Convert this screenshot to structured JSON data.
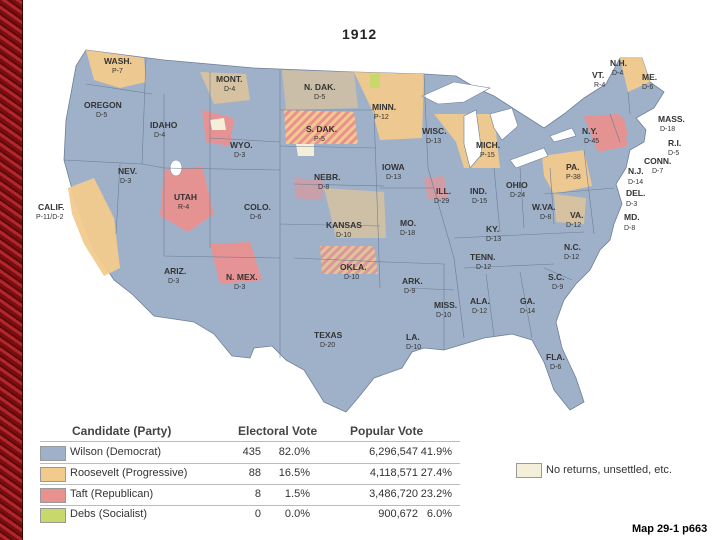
{
  "title": "1912",
  "caption": "Map 29-1 p663",
  "colors": {
    "wilson": "#9fb1c9",
    "roosevelt": "#f2ca8d",
    "taft": "#e99191",
    "debs": "#c8d86b",
    "no_returns": "#f3efd9",
    "water": "#ffffff"
  },
  "states": [
    {
      "abbr": "WASH.",
      "votes": "P-7"
    },
    {
      "abbr": "OREGON",
      "votes": "D-5"
    },
    {
      "abbr": "CALIF.",
      "votes": "P-11/D-2"
    },
    {
      "abbr": "IDAHO",
      "votes": "D-4"
    },
    {
      "abbr": "NEV.",
      "votes": "D-3"
    },
    {
      "abbr": "MONT.",
      "votes": "D-4"
    },
    {
      "abbr": "WYO.",
      "votes": "D-3"
    },
    {
      "abbr": "UTAH",
      "votes": "R-4"
    },
    {
      "abbr": "ARIZ.",
      "votes": "D-3"
    },
    {
      "abbr": "COLO.",
      "votes": "D-6"
    },
    {
      "abbr": "N. MEX.",
      "votes": "D-3"
    },
    {
      "abbr": "N. DAK.",
      "votes": "D-5"
    },
    {
      "abbr": "S. DAK.",
      "votes": "P-5"
    },
    {
      "abbr": "NEBR.",
      "votes": "D-8"
    },
    {
      "abbr": "KANSAS",
      "votes": "D-10"
    },
    {
      "abbr": "OKLA.",
      "votes": "D-10"
    },
    {
      "abbr": "TEXAS",
      "votes": "D-20"
    },
    {
      "abbr": "MINN.",
      "votes": "P-12"
    },
    {
      "abbr": "IOWA",
      "votes": "D-13"
    },
    {
      "abbr": "MO.",
      "votes": "D-18"
    },
    {
      "abbr": "ARK.",
      "votes": "D-9"
    },
    {
      "abbr": "LA.",
      "votes": "D-10"
    },
    {
      "abbr": "WISC.",
      "votes": "D-13"
    },
    {
      "abbr": "ILL.",
      "votes": "D-29"
    },
    {
      "abbr": "MICH.",
      "votes": "P-15"
    },
    {
      "abbr": "IND.",
      "votes": "D-15"
    },
    {
      "abbr": "OHIO",
      "votes": "D-24"
    },
    {
      "abbr": "KY.",
      "votes": "D-13"
    },
    {
      "abbr": "TENN.",
      "votes": "D-12"
    },
    {
      "abbr": "MISS.",
      "votes": "D-10"
    },
    {
      "abbr": "ALA.",
      "votes": "D-12"
    },
    {
      "abbr": "GA.",
      "votes": "D-14"
    },
    {
      "abbr": "FLA.",
      "votes": "D-6"
    },
    {
      "abbr": "S.C.",
      "votes": "D-9"
    },
    {
      "abbr": "N.C.",
      "votes": "D-12"
    },
    {
      "abbr": "VA.",
      "votes": "D-12"
    },
    {
      "abbr": "W.VA.",
      "votes": "D-8"
    },
    {
      "abbr": "PA.",
      "votes": "P-38"
    },
    {
      "abbr": "N.Y.",
      "votes": "D-45"
    },
    {
      "abbr": "VT.",
      "votes": "R-4"
    },
    {
      "abbr": "N.H.",
      "votes": "D-4"
    },
    {
      "abbr": "ME.",
      "votes": "D-6"
    },
    {
      "abbr": "MASS.",
      "votes": "D-18"
    },
    {
      "abbr": "R.I.",
      "votes": "D-5"
    },
    {
      "abbr": "CONN.",
      "votes": "D-7"
    },
    {
      "abbr": "N.J.",
      "votes": "D-14"
    },
    {
      "abbr": "DEL.",
      "votes": "D-3"
    },
    {
      "abbr": "MD.",
      "votes": "D-8"
    }
  ],
  "legend": {
    "headers": {
      "candidate": "Candidate (Party)",
      "electoral": "Electoral Vote",
      "popular": "Popular Vote"
    },
    "rows": [
      {
        "name": "Wilson (Democrat)",
        "ev": "435",
        "ev_pct": "82.0%",
        "pv": "6,296,547",
        "pv_pct": "41.9%"
      },
      {
        "name": "Roosevelt (Progressive)",
        "ev": "88",
        "ev_pct": "16.5%",
        "pv": "4,118,571",
        "pv_pct": "27.4%"
      },
      {
        "name": "Taft (Republican)",
        "ev": "8",
        "ev_pct": "1.5%",
        "pv": "3,486,720",
        "pv_pct": "23.2%"
      },
      {
        "name": "Debs (Socialist)",
        "ev": "0",
        "ev_pct": "0.0%",
        "pv": "900,672",
        "pv_pct": "6.0%"
      }
    ],
    "no_returns": "No returns, unsettled, etc."
  }
}
